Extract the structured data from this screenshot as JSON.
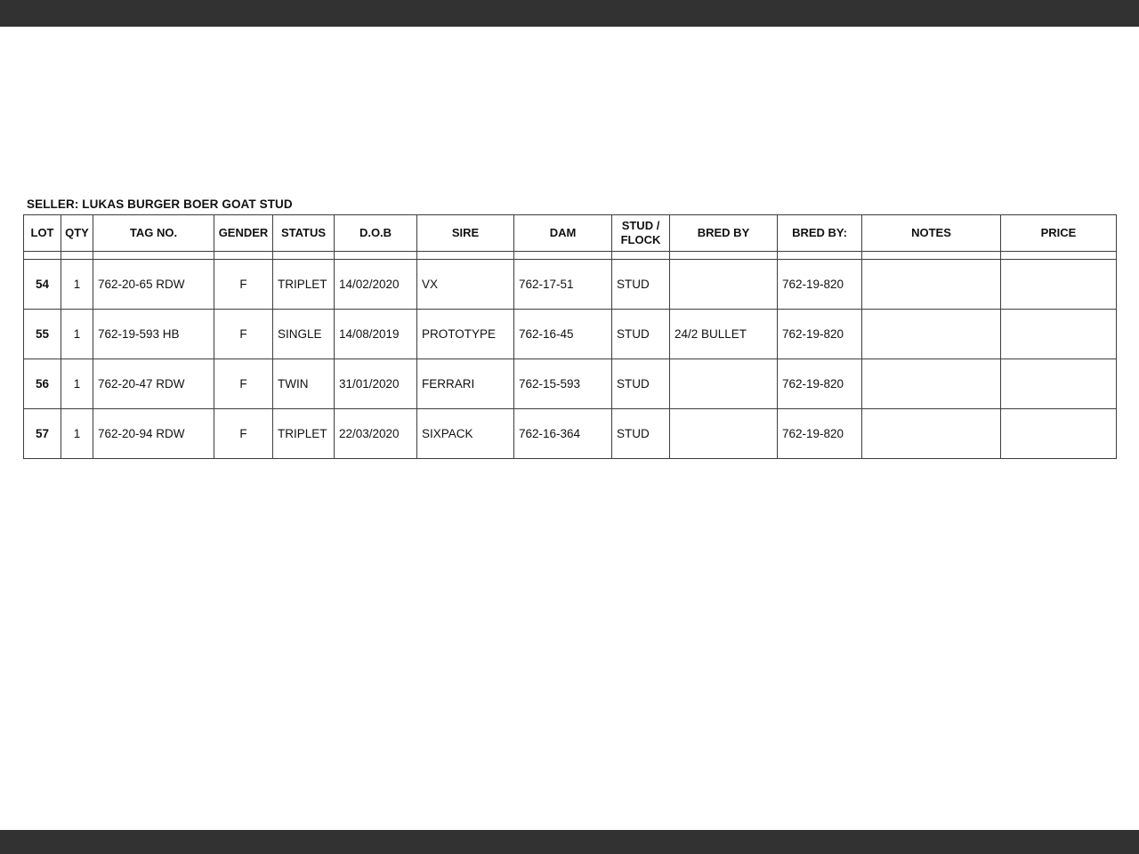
{
  "chrome": {
    "top_bar_color": "#323232",
    "bottom_bar_color": "#323232",
    "page_background": "#ffffff"
  },
  "document": {
    "seller_title": "SELLER: LUKAS BURGER BOER GOAT STUD",
    "table": {
      "headers": [
        "LOT",
        "QTY",
        "TAG NO.",
        "GENDER",
        "STATUS",
        "D.O.B",
        "SIRE",
        "DAM",
        "STUD / FLOCK",
        "BRED BY",
        "BRED BY:",
        "NOTES",
        "PRICE"
      ],
      "rows": [
        [
          "54",
          "1",
          "762-20-65 RDW",
          "F",
          "TRIPLET",
          "14/02/2020",
          "VX",
          "762-17-51",
          "STUD",
          "",
          "762-19-820",
          "",
          ""
        ],
        [
          "55",
          "1",
          "762-19-593 HB",
          "F",
          "SINGLE",
          "14/08/2019",
          "PROTOTYPE",
          "762-16-45",
          "STUD",
          "24/2 BULLET",
          "762-19-820",
          "",
          ""
        ],
        [
          "56",
          "1",
          "762-20-47 RDW",
          "F",
          "TWIN",
          "31/01/2020",
          "FERRARI",
          "762-15-593",
          "STUD",
          "",
          "762-19-820",
          "",
          ""
        ],
        [
          "57",
          "1",
          "762-20-94 RDW",
          "F",
          "TRIPLET",
          "22/03/2020",
          "SIXPACK",
          "762-16-364",
          "STUD",
          "",
          "762-19-820",
          "",
          ""
        ]
      ]
    }
  }
}
